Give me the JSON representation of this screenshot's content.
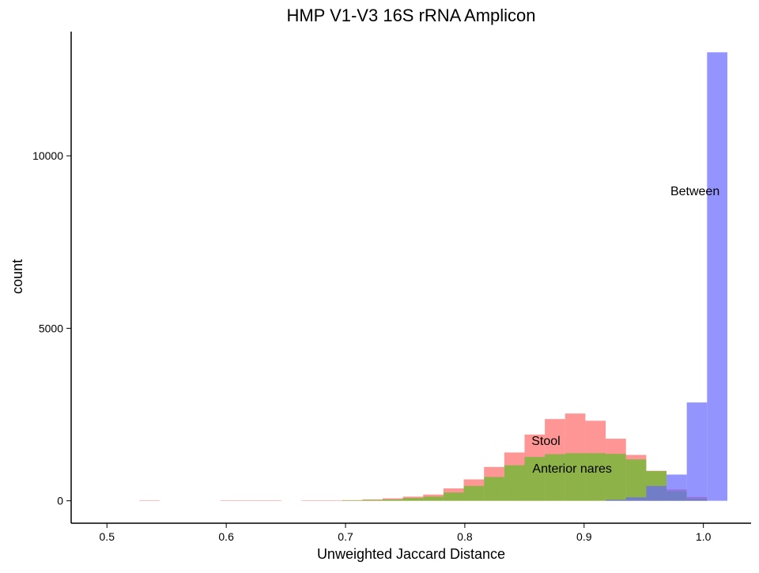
{
  "chart_data": {
    "type": "bar",
    "title": "HMP V1-V3 16S rRNA Amplicon",
    "xlabel": "Unweighted Jaccard Distance",
    "ylabel": "count",
    "xlim": [
      0.47,
      1.04
    ],
    "ylim": [
      -650,
      13600
    ],
    "bin_width": 0.017,
    "grid": false,
    "x_ticks": [
      {
        "value": 0.5,
        "label": "0.5"
      },
      {
        "value": 0.6,
        "label": "0.6"
      },
      {
        "value": 0.7,
        "label": "0.7"
      },
      {
        "value": 0.8,
        "label": "0.8"
      },
      {
        "value": 0.9,
        "label": "0.9"
      },
      {
        "value": 1.0,
        "label": "1.0"
      }
    ],
    "y_ticks": [
      {
        "value": 0,
        "label": "0"
      },
      {
        "value": 5000,
        "label": "5000"
      },
      {
        "value": 10000,
        "label": "10000"
      }
    ],
    "series": [
      {
        "color": "#ff6a6a",
        "bins": [
          {
            "x": 0.5356,
            "y": 10
          },
          {
            "x": 0.6036,
            "y": 10
          },
          {
            "x": 0.6206,
            "y": 10
          },
          {
            "x": 0.6376,
            "y": 10
          },
          {
            "x": 0.6716,
            "y": 10
          },
          {
            "x": 0.6886,
            "y": 10
          },
          {
            "x": 0.7056,
            "y": 20
          },
          {
            "x": 0.7226,
            "y": 40
          },
          {
            "x": 0.7396,
            "y": 70
          },
          {
            "x": 0.7566,
            "y": 120
          },
          {
            "x": 0.7736,
            "y": 180
          },
          {
            "x": 0.7906,
            "y": 360
          },
          {
            "x": 0.8076,
            "y": 620
          },
          {
            "x": 0.8246,
            "y": 980
          },
          {
            "x": 0.8416,
            "y": 1400
          },
          {
            "x": 0.8586,
            "y": 1920
          },
          {
            "x": 0.8756,
            "y": 2370
          },
          {
            "x": 0.8926,
            "y": 2530
          },
          {
            "x": 0.9096,
            "y": 2320
          },
          {
            "x": 0.9266,
            "y": 1800
          },
          {
            "x": 0.9436,
            "y": 1330
          },
          {
            "x": 0.9606,
            "y": 870
          },
          {
            "x": 0.9776,
            "y": 330
          },
          {
            "x": 0.9946,
            "y": 110
          }
        ]
      },
      {
        "color": "#5cbd27",
        "bins": [
          {
            "x": 0.7056,
            "y": 15
          },
          {
            "x": 0.7226,
            "y": 25
          },
          {
            "x": 0.7396,
            "y": 40
          },
          {
            "x": 0.7566,
            "y": 80
          },
          {
            "x": 0.7736,
            "y": 120
          },
          {
            "x": 0.7906,
            "y": 240
          },
          {
            "x": 0.8076,
            "y": 430
          },
          {
            "x": 0.8246,
            "y": 690
          },
          {
            "x": 0.8416,
            "y": 1030
          },
          {
            "x": 0.8586,
            "y": 1270
          },
          {
            "x": 0.8756,
            "y": 1350
          },
          {
            "x": 0.8926,
            "y": 1380
          },
          {
            "x": 0.9096,
            "y": 1380
          },
          {
            "x": 0.9266,
            "y": 1360
          },
          {
            "x": 0.9436,
            "y": 1200
          },
          {
            "x": 0.9606,
            "y": 860
          },
          {
            "x": 0.9776,
            "y": 280
          },
          {
            "x": 0.9946,
            "y": 60
          }
        ]
      },
      {
        "color": "#6666ff",
        "bins": [
          {
            "x": 0.9266,
            "y": 30
          },
          {
            "x": 0.9436,
            "y": 100
          },
          {
            "x": 0.9606,
            "y": 430
          },
          {
            "x": 0.9776,
            "y": 760
          },
          {
            "x": 0.9946,
            "y": 2850
          },
          {
            "x": 1.0116,
            "y": 13000
          }
        ]
      }
    ],
    "annotations": [
      {
        "text": "Between",
        "x": 0.993,
        "y": 9000
      },
      {
        "text": "Stool",
        "x": 0.868,
        "y": 1750
      },
      {
        "text": "Anterior nares",
        "x": 0.89,
        "y": 950
      }
    ]
  }
}
